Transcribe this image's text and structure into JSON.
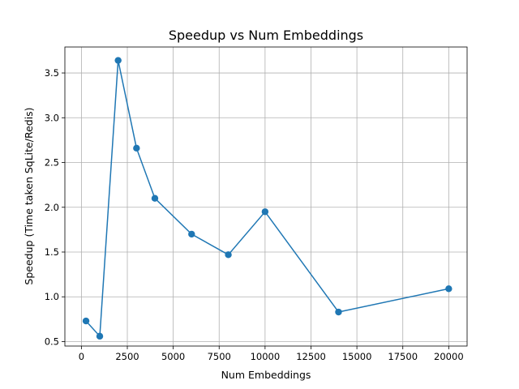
{
  "chart_data": {
    "type": "line",
    "title": "Speedup vs Num Embeddings",
    "xlabel": "Num Embeddings",
    "ylabel": "Speedup (Time taken SqLite/Redis)",
    "xlim": [
      -900,
      21000
    ],
    "ylim": [
      0.45,
      3.79
    ],
    "xticks": [
      0,
      2500,
      5000,
      7500,
      10000,
      12500,
      15000,
      17500,
      20000
    ],
    "xtick_labels": [
      "0",
      "2500",
      "5000",
      "7500",
      "10000",
      "12500",
      "15000",
      "17500",
      "20000"
    ],
    "yticks": [
      0.5,
      1.0,
      1.5,
      2.0,
      2.5,
      3.0,
      3.5
    ],
    "ytick_labels": [
      "0.5",
      "1.0",
      "1.5",
      "2.0",
      "2.5",
      "3.0",
      "3.5"
    ],
    "grid": true,
    "series": [
      {
        "color": "#1f77b4",
        "marker": "circle",
        "x": [
          250,
          1000,
          2000,
          3000,
          4000,
          6000,
          8000,
          10000,
          14000,
          20000
        ],
        "y": [
          0.73,
          0.56,
          3.64,
          2.66,
          2.1,
          1.7,
          1.47,
          1.95,
          0.83,
          1.09
        ]
      }
    ]
  }
}
